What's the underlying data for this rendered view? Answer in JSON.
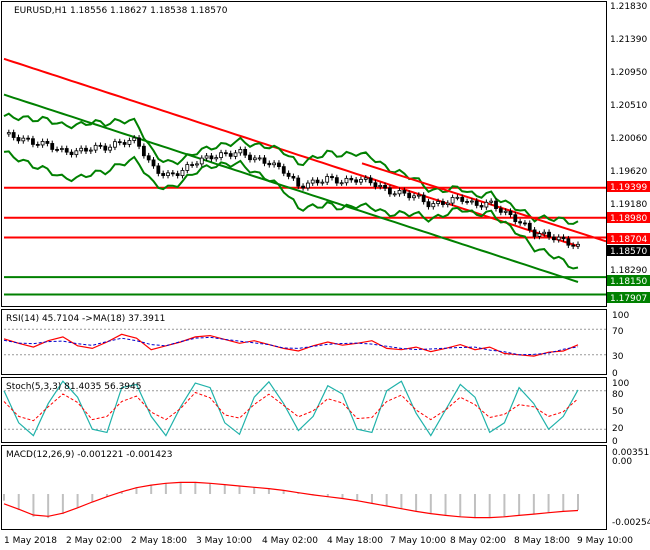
{
  "main": {
    "header": "EURUSD,H1  1.18556 1.18627 1.18538 1.18570",
    "price_labels": [
      "1.21830",
      "1.21390",
      "1.20950",
      "1.20510",
      "1.20060",
      "1.19620",
      "1.19180",
      "1.18290"
    ],
    "level_labels": [
      "1.19399",
      "1.18980",
      "1.18704",
      "1.18570",
      "1.18150",
      "1.17907"
    ]
  },
  "rsi": {
    "header": "RSI(14) 45.7104  ->MA(18) 37.3911",
    "scale_labels": [
      "100",
      "70",
      "30",
      "0"
    ]
  },
  "stoch": {
    "header": "Stoch(5,3,3) 81.4035 56.3945",
    "scale_labels": [
      "100",
      "80",
      "50",
      "20",
      "0"
    ]
  },
  "macd": {
    "header": "MACD(12,26,9) -0.001221 -0.001423",
    "scale_labels": [
      "0.00351",
      "0.00",
      "-0.00254"
    ]
  },
  "time_labels": [
    "1 May 2018",
    "2 May 02:00",
    "2 May 18:00",
    "3 May 10:00",
    "4 May 02:00",
    "4 May 18:00",
    "7 May 10:00",
    "8 May 02:00",
    "8 May 18:00",
    "9 May 10:00"
  ],
  "colors": {
    "support": "#008000",
    "resistance": "#ff0000",
    "bollinger": "#008000",
    "ma_slow": "#008000",
    "rsi": "#ff0000",
    "rsi_ma": "#0000cc",
    "stoch_main": "#20b2aa",
    "stoch_signal": "#ff0000",
    "macd_signal": "#ff0000",
    "macd_hist": "#c0c0c0"
  },
  "chart_data": [
    {
      "type": "candlestick",
      "symbol": "EURUSD",
      "timeframe": "H1",
      "ohlc_last": {
        "open": 1.18556,
        "high": 1.18627,
        "low": 1.18538,
        "close": 1.1857
      },
      "y_range": [
        1.1776,
        1.2198
      ],
      "horizontal_levels": [
        {
          "value": 1.19399,
          "role": "resistance"
        },
        {
          "value": 1.1898,
          "role": "resistance"
        },
        {
          "value": 1.18704,
          "role": "resistance"
        },
        {
          "value": 1.1815,
          "role": "support"
        },
        {
          "value": 1.17907,
          "role": "support"
        }
      ],
      "closes": [
        1.2015,
        1.2009,
        1.2003,
        1.2,
        1.199,
        1.199,
        1.1996,
        1.1996,
        1.2004,
        1.2006,
        1.197,
        1.1956,
        1.1962,
        1.1976,
        1.1983,
        1.1986,
        1.199,
        1.198,
        1.1975,
        1.1964,
        1.1942,
        1.1947,
        1.1953,
        1.1948,
        1.1952,
        1.1948,
        1.1935,
        1.1932,
        1.1928,
        1.1915,
        1.192,
        1.1926,
        1.1915,
        1.1919,
        1.1905,
        1.1893,
        1.1876,
        1.1873,
        1.1866,
        1.1857
      ]
    },
    {
      "type": "line",
      "title": "RSI(14)",
      "ylim": [
        0,
        100
      ],
      "series": [
        {
          "name": "RSI(14)",
          "last": 45.7104
        },
        {
          "name": "MA(18)",
          "last": 37.3911
        }
      ],
      "values": [
        55,
        48,
        42,
        52,
        58,
        44,
        40,
        50,
        62,
        56,
        38,
        44,
        50,
        58,
        60,
        54,
        48,
        52,
        46,
        40,
        36,
        44,
        50,
        45,
        48,
        52,
        40,
        38,
        42,
        35,
        40,
        46,
        38,
        42,
        32,
        30,
        28,
        34,
        36,
        45.7
      ]
    },
    {
      "type": "line",
      "title": "Stoch(5,3,3)",
      "ylim": [
        0,
        100
      ],
      "series": [
        {
          "name": "main",
          "last": 81.4035
        },
        {
          "name": "signal",
          "last": 56.3945
        }
      ],
      "values": [
        80,
        30,
        10,
        60,
        95,
        70,
        20,
        15,
        85,
        90,
        40,
        10,
        55,
        92,
        85,
        30,
        12,
        70,
        94,
        60,
        18,
        40,
        88,
        75,
        20,
        15,
        80,
        95,
        45,
        10,
        50,
        90,
        70,
        15,
        30,
        85,
        60,
        20,
        40,
        81.4
      ]
    },
    {
      "type": "line",
      "title": "MACD(12,26,9)",
      "ylim": [
        -0.00254,
        0.00351
      ],
      "series": [
        {
          "name": "MACD",
          "last": -0.001221
        },
        {
          "name": "Signal",
          "last": -0.001423
        }
      ],
      "values": [
        -0.0005,
        -0.0012,
        -0.0017,
        -0.0018,
        -0.0015,
        -0.001,
        -0.0006,
        -0.0002,
        0.0002,
        0.0005,
        0.0007,
        0.0008,
        0.0009,
        0.0009,
        0.0008,
        0.0007,
        0.0006,
        0.0005,
        0.0004,
        0.0003,
        0.0001,
        -0.0001,
        -0.0002,
        -0.0003,
        -0.0005,
        -0.0007,
        -0.0009,
        -0.0011,
        -0.0013,
        -0.0015,
        -0.0016,
        -0.0017,
        -0.0018,
        -0.0018,
        -0.0017,
        -0.0016,
        -0.0015,
        -0.0014,
        -0.0013,
        -0.0012
      ]
    }
  ]
}
